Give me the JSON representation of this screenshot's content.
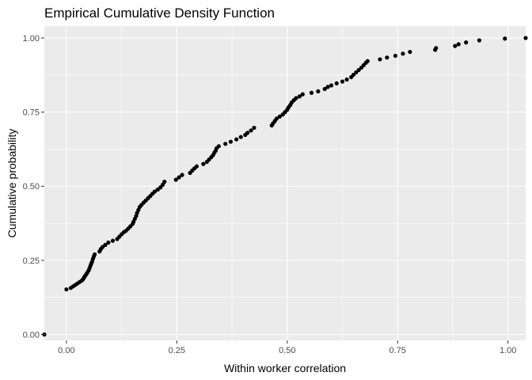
{
  "chart_data": {
    "type": "scatter",
    "title": "Empirical Cumulative Density Function",
    "xlabel": "Within worker correlation",
    "ylabel": "Cumulative probability",
    "xlim": [
      -0.05,
      1.04
    ],
    "ylim": [
      -0.02,
      1.04
    ],
    "x_ticks": [
      0.0,
      0.25,
      0.5,
      0.75,
      1.0
    ],
    "x_tick_labels": [
      "0.00",
      "0.25",
      "0.50",
      "0.75",
      "1.00"
    ],
    "y_ticks": [
      0.0,
      0.25,
      0.5,
      0.75,
      1.0
    ],
    "y_tick_labels": [
      "0.00",
      "0.25",
      "0.50",
      "0.75",
      "1.00"
    ],
    "grid": true,
    "panel_color": "#ebebeb",
    "point_color": "#000000",
    "points": [
      {
        "x": -0.05,
        "y": 0.0
      },
      {
        "x": 0.0,
        "y": 0.152
      },
      {
        "x": 0.01,
        "y": 0.157
      },
      {
        "x": 0.015,
        "y": 0.162
      },
      {
        "x": 0.02,
        "y": 0.167
      },
      {
        "x": 0.025,
        "y": 0.172
      },
      {
        "x": 0.03,
        "y": 0.177
      },
      {
        "x": 0.035,
        "y": 0.182
      },
      {
        "x": 0.038,
        "y": 0.187
      },
      {
        "x": 0.04,
        "y": 0.192
      },
      {
        "x": 0.042,
        "y": 0.197
      },
      {
        "x": 0.045,
        "y": 0.203
      },
      {
        "x": 0.047,
        "y": 0.208
      },
      {
        "x": 0.05,
        "y": 0.215
      },
      {
        "x": 0.052,
        "y": 0.222
      },
      {
        "x": 0.054,
        "y": 0.23
      },
      {
        "x": 0.056,
        "y": 0.238
      },
      {
        "x": 0.058,
        "y": 0.245
      },
      {
        "x": 0.06,
        "y": 0.255
      },
      {
        "x": 0.062,
        "y": 0.263
      },
      {
        "x": 0.064,
        "y": 0.27
      },
      {
        "x": 0.075,
        "y": 0.28
      },
      {
        "x": 0.078,
        "y": 0.288
      },
      {
        "x": 0.082,
        "y": 0.295
      },
      {
        "x": 0.088,
        "y": 0.302
      },
      {
        "x": 0.095,
        "y": 0.31
      },
      {
        "x": 0.105,
        "y": 0.316
      },
      {
        "x": 0.115,
        "y": 0.322
      },
      {
        "x": 0.12,
        "y": 0.33
      },
      {
        "x": 0.125,
        "y": 0.338
      },
      {
        "x": 0.13,
        "y": 0.345
      },
      {
        "x": 0.135,
        "y": 0.35
      },
      {
        "x": 0.14,
        "y": 0.357
      },
      {
        "x": 0.145,
        "y": 0.365
      },
      {
        "x": 0.15,
        "y": 0.373
      },
      {
        "x": 0.152,
        "y": 0.38
      },
      {
        "x": 0.155,
        "y": 0.39
      },
      {
        "x": 0.158,
        "y": 0.4
      },
      {
        "x": 0.16,
        "y": 0.41
      },
      {
        "x": 0.163,
        "y": 0.42
      },
      {
        "x": 0.166,
        "y": 0.43
      },
      {
        "x": 0.17,
        "y": 0.437
      },
      {
        "x": 0.175,
        "y": 0.445
      },
      {
        "x": 0.18,
        "y": 0.452
      },
      {
        "x": 0.185,
        "y": 0.46
      },
      {
        "x": 0.19,
        "y": 0.467
      },
      {
        "x": 0.195,
        "y": 0.475
      },
      {
        "x": 0.2,
        "y": 0.482
      },
      {
        "x": 0.207,
        "y": 0.489
      },
      {
        "x": 0.213,
        "y": 0.496
      },
      {
        "x": 0.218,
        "y": 0.505
      },
      {
        "x": 0.222,
        "y": 0.515
      },
      {
        "x": 0.248,
        "y": 0.522
      },
      {
        "x": 0.255,
        "y": 0.53
      },
      {
        "x": 0.262,
        "y": 0.538
      },
      {
        "x": 0.28,
        "y": 0.545
      },
      {
        "x": 0.285,
        "y": 0.553
      },
      {
        "x": 0.29,
        "y": 0.56
      },
      {
        "x": 0.295,
        "y": 0.567
      },
      {
        "x": 0.31,
        "y": 0.575
      },
      {
        "x": 0.318,
        "y": 0.582
      },
      {
        "x": 0.323,
        "y": 0.59
      },
      {
        "x": 0.328,
        "y": 0.598
      },
      {
        "x": 0.332,
        "y": 0.605
      },
      {
        "x": 0.335,
        "y": 0.613
      },
      {
        "x": 0.338,
        "y": 0.62
      },
      {
        "x": 0.34,
        "y": 0.628
      },
      {
        "x": 0.345,
        "y": 0.635
      },
      {
        "x": 0.36,
        "y": 0.643
      },
      {
        "x": 0.372,
        "y": 0.65
      },
      {
        "x": 0.385,
        "y": 0.658
      },
      {
        "x": 0.395,
        "y": 0.666
      },
      {
        "x": 0.405,
        "y": 0.673
      },
      {
        "x": 0.41,
        "y": 0.68
      },
      {
        "x": 0.418,
        "y": 0.688
      },
      {
        "x": 0.425,
        "y": 0.697
      },
      {
        "x": 0.465,
        "y": 0.705
      },
      {
        "x": 0.468,
        "y": 0.712
      },
      {
        "x": 0.472,
        "y": 0.72
      },
      {
        "x": 0.476,
        "y": 0.728
      },
      {
        "x": 0.483,
        "y": 0.735
      },
      {
        "x": 0.49,
        "y": 0.742
      },
      {
        "x": 0.495,
        "y": 0.75
      },
      {
        "x": 0.5,
        "y": 0.758
      },
      {
        "x": 0.503,
        "y": 0.766
      },
      {
        "x": 0.507,
        "y": 0.774
      },
      {
        "x": 0.51,
        "y": 0.782
      },
      {
        "x": 0.515,
        "y": 0.79
      },
      {
        "x": 0.52,
        "y": 0.797
      },
      {
        "x": 0.528,
        "y": 0.803
      },
      {
        "x": 0.535,
        "y": 0.81
      },
      {
        "x": 0.555,
        "y": 0.815
      },
      {
        "x": 0.57,
        "y": 0.82
      },
      {
        "x": 0.585,
        "y": 0.828
      },
      {
        "x": 0.592,
        "y": 0.835
      },
      {
        "x": 0.6,
        "y": 0.84
      },
      {
        "x": 0.612,
        "y": 0.847
      },
      {
        "x": 0.625,
        "y": 0.853
      },
      {
        "x": 0.635,
        "y": 0.86
      },
      {
        "x": 0.645,
        "y": 0.868
      },
      {
        "x": 0.65,
        "y": 0.876
      },
      {
        "x": 0.656,
        "y": 0.884
      },
      {
        "x": 0.662,
        "y": 0.892
      },
      {
        "x": 0.668,
        "y": 0.9
      },
      {
        "x": 0.673,
        "y": 0.908
      },
      {
        "x": 0.678,
        "y": 0.916
      },
      {
        "x": 0.682,
        "y": 0.922
      },
      {
        "x": 0.71,
        "y": 0.928
      },
      {
        "x": 0.726,
        "y": 0.934
      },
      {
        "x": 0.745,
        "y": 0.94
      },
      {
        "x": 0.762,
        "y": 0.947
      },
      {
        "x": 0.778,
        "y": 0.953
      },
      {
        "x": 0.835,
        "y": 0.96
      },
      {
        "x": 0.837,
        "y": 0.966
      },
      {
        "x": 0.88,
        "y": 0.973
      },
      {
        "x": 0.888,
        "y": 0.979
      },
      {
        "x": 0.905,
        "y": 0.985
      },
      {
        "x": 0.935,
        "y": 0.992
      },
      {
        "x": 0.993,
        "y": 0.998
      },
      {
        "x": 1.04,
        "y": 1.0
      }
    ]
  }
}
